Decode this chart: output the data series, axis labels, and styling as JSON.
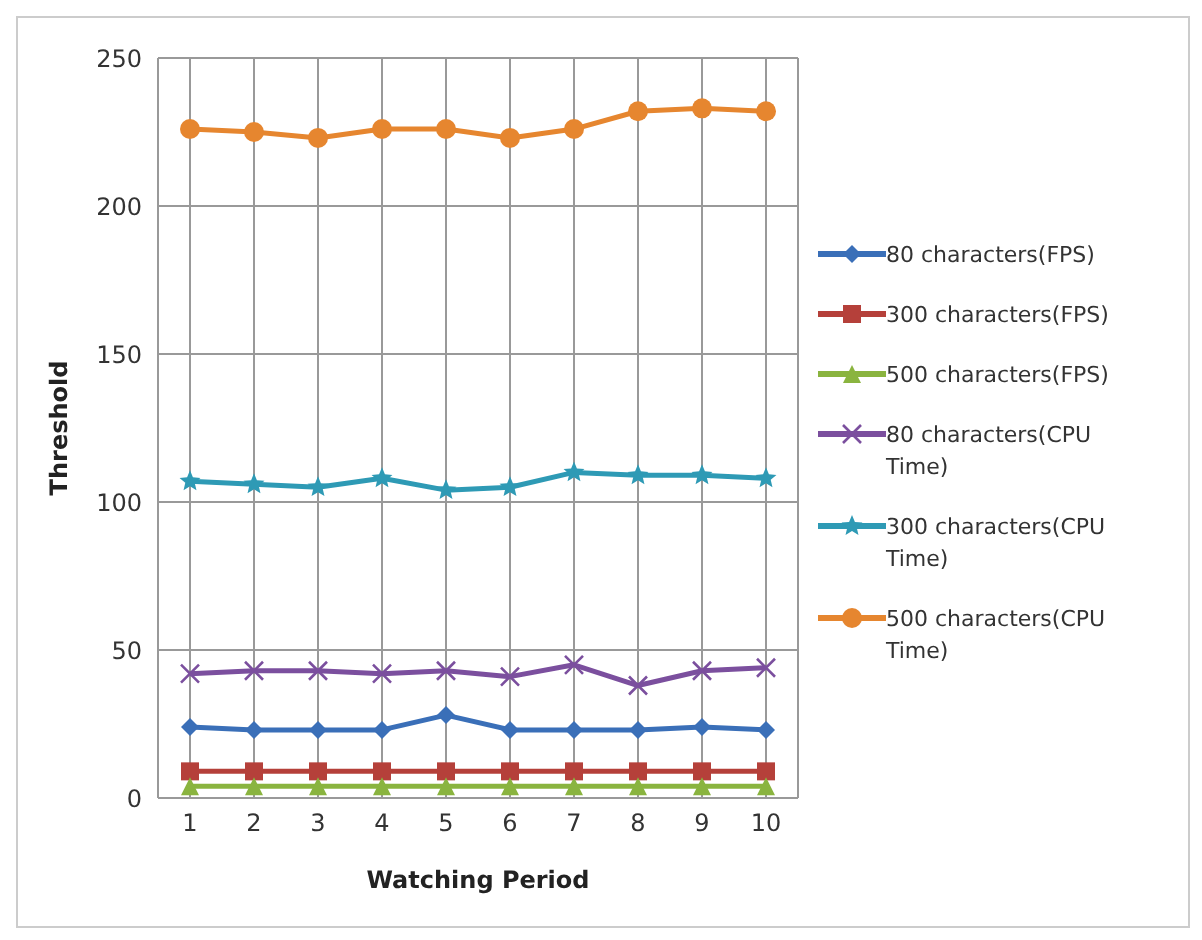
{
  "chart_data": {
    "type": "line",
    "xlabel": "Watching Period",
    "ylabel": "Threshold",
    "categories": [
      "1",
      "2",
      "3",
      "4",
      "5",
      "6",
      "7",
      "8",
      "9",
      "10"
    ],
    "ylim": [
      0,
      250
    ],
    "yticks": [
      0,
      50,
      100,
      150,
      200,
      250
    ],
    "grid": true,
    "legend": "right",
    "series": [
      {
        "name": "80 characters(FPS)",
        "color": "#3a6fb8",
        "marker": "diamond",
        "values": [
          24,
          23,
          23,
          23,
          28,
          23,
          23,
          23,
          24,
          23
        ]
      },
      {
        "name": "300 characters(FPS)",
        "color": "#b5403a",
        "marker": "square",
        "values": [
          9,
          9,
          9,
          9,
          9,
          9,
          9,
          9,
          9,
          9
        ]
      },
      {
        "name": "500 characters(FPS)",
        "color": "#8ab43f",
        "marker": "triangle",
        "values": [
          4,
          4,
          4,
          4,
          4,
          4,
          4,
          4,
          4,
          4
        ]
      },
      {
        "name": "80 characters(CPU Time)",
        "color": "#7b4f9e",
        "marker": "cross",
        "values": [
          42,
          43,
          43,
          42,
          43,
          41,
          45,
          38,
          43,
          44
        ]
      },
      {
        "name": "300 characters(CPU Time)",
        "color": "#2e9ab5",
        "marker": "star",
        "values": [
          107,
          106,
          105,
          108,
          104,
          105,
          110,
          109,
          109,
          108
        ]
      },
      {
        "name": "500 characters(CPU Time)",
        "color": "#e6862f",
        "marker": "circle",
        "values": [
          226,
          225,
          223,
          226,
          226,
          223,
          226,
          232,
          233,
          232
        ]
      }
    ]
  }
}
